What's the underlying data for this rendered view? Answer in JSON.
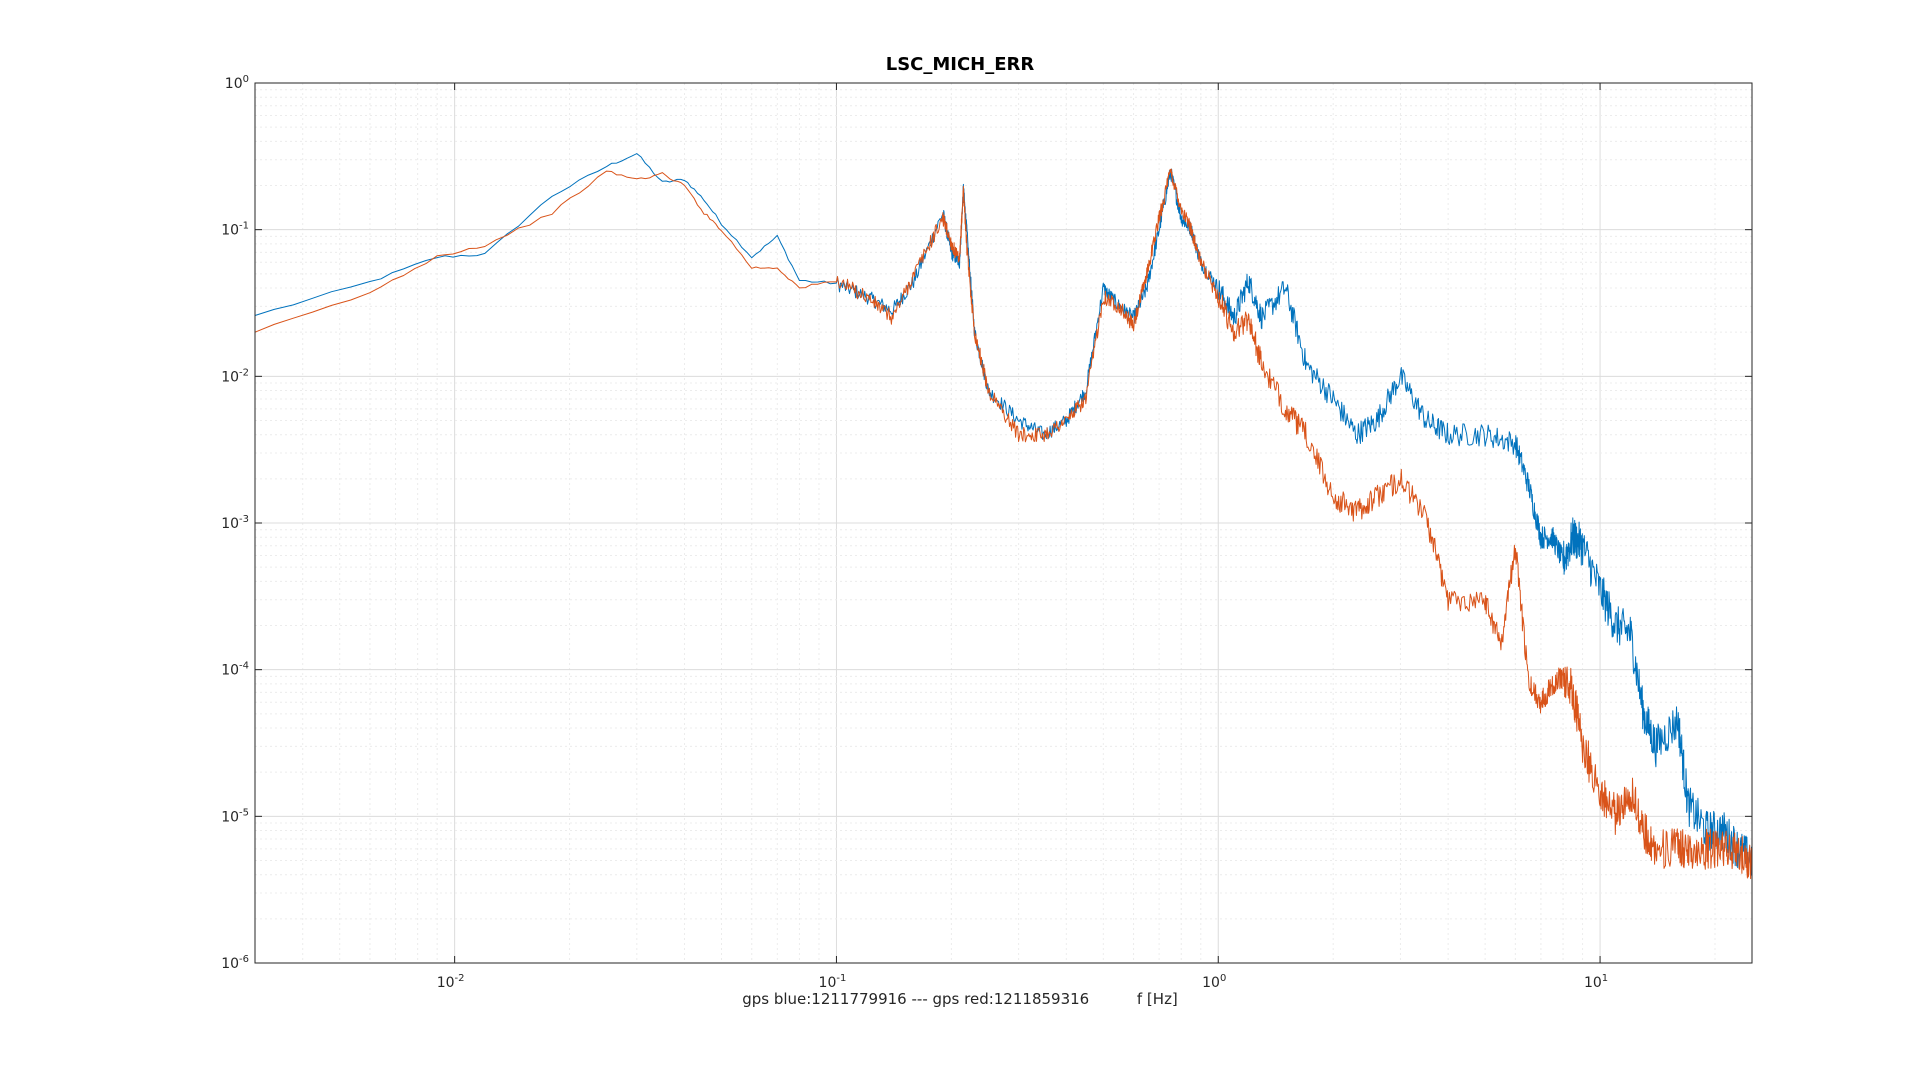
{
  "chart_data": {
    "type": "line",
    "title": "LSC_MICH_ERR",
    "xlabel": "gps blue:1211779916 --- gps red:1211859316          f [Hz]",
    "ylabel": "",
    "x_scale": "log",
    "y_scale": "log",
    "xlim": [
      0.003,
      25
    ],
    "ylim": [
      1e-06,
      1
    ],
    "grid": true,
    "minor_grid": true,
    "x_ticks": [
      {
        "base": "10",
        "exp": "-2",
        "value": 0.01
      },
      {
        "base": "10",
        "exp": "-1",
        "value": 0.1
      },
      {
        "base": "10",
        "exp": "0",
        "value": 1
      },
      {
        "base": "10",
        "exp": "1",
        "value": 10
      }
    ],
    "y_ticks": [
      {
        "base": "10",
        "exp": "0",
        "value": 1
      },
      {
        "base": "10",
        "exp": "-1",
        "value": 0.1
      },
      {
        "base": "10",
        "exp": "-2",
        "value": 0.01
      },
      {
        "base": "10",
        "exp": "-3",
        "value": 0.001
      },
      {
        "base": "10",
        "exp": "-4",
        "value": 0.0001
      },
      {
        "base": "10",
        "exp": "-5",
        "value": 1e-05
      },
      {
        "base": "10",
        "exp": "-6",
        "value": 1e-06
      }
    ],
    "series": [
      {
        "color": "#0072BD",
        "x": [
          0.003,
          0.006,
          0.009,
          0.012,
          0.018,
          0.025,
          0.03,
          0.035,
          0.04,
          0.045,
          0.05,
          0.06,
          0.07,
          0.08,
          0.1,
          0.12,
          0.14,
          0.16,
          0.19,
          0.2,
          0.21,
          0.215,
          0.22,
          0.23,
          0.25,
          0.3,
          0.35,
          0.4,
          0.45,
          0.5,
          0.55,
          0.6,
          0.65,
          0.7,
          0.75,
          0.8,
          0.85,
          0.9,
          1.0,
          1.1,
          1.2,
          1.3,
          1.5,
          1.7,
          2.0,
          2.3,
          2.6,
          3.0,
          3.5,
          4.0,
          5.0,
          6.0,
          6.5,
          7.0,
          7.5,
          8.0,
          8.5,
          9.0,
          10.0,
          11.0,
          12.0,
          13.0,
          14.0,
          16.0,
          17.0,
          19.0,
          21.0,
          23.0,
          25.0
        ],
        "y": [
          0.026,
          0.044,
          0.065,
          0.068,
          0.17,
          0.27,
          0.33,
          0.21,
          0.22,
          0.16,
          0.11,
          0.065,
          0.09,
          0.045,
          0.043,
          0.035,
          0.028,
          0.045,
          0.13,
          0.07,
          0.06,
          0.19,
          0.09,
          0.02,
          0.008,
          0.005,
          0.004,
          0.005,
          0.008,
          0.04,
          0.03,
          0.025,
          0.04,
          0.1,
          0.25,
          0.12,
          0.1,
          0.06,
          0.04,
          0.025,
          0.045,
          0.025,
          0.04,
          0.012,
          0.007,
          0.004,
          0.005,
          0.01,
          0.005,
          0.004,
          0.004,
          0.0035,
          0.0018,
          0.0008,
          0.0008,
          0.00055,
          0.0008,
          0.0007,
          0.00035,
          0.0002,
          0.00018,
          5e-05,
          3e-05,
          4.5e-05,
          1.2e-05,
          8e-06,
          8e-06,
          6e-06,
          5e-06
        ]
      },
      {
        "color": "#D95319",
        "x": [
          0.003,
          0.006,
          0.009,
          0.012,
          0.018,
          0.025,
          0.03,
          0.035,
          0.04,
          0.045,
          0.05,
          0.06,
          0.07,
          0.08,
          0.1,
          0.12,
          0.14,
          0.16,
          0.19,
          0.2,
          0.21,
          0.215,
          0.22,
          0.23,
          0.25,
          0.3,
          0.35,
          0.4,
          0.45,
          0.5,
          0.55,
          0.6,
          0.65,
          0.7,
          0.75,
          0.8,
          0.85,
          0.9,
          1.0,
          1.1,
          1.2,
          1.3,
          1.5,
          1.7,
          2.0,
          2.3,
          2.6,
          3.0,
          3.5,
          4.0,
          5.0,
          5.5,
          6.0,
          6.5,
          7.0,
          7.5,
          8.0,
          8.5,
          9.0,
          10.0,
          11.0,
          12.0,
          13.0,
          14.0,
          16.0,
          17.0,
          19.0,
          21.0,
          23.0,
          25.0
        ],
        "y": [
          0.02,
          0.037,
          0.066,
          0.078,
          0.13,
          0.25,
          0.22,
          0.24,
          0.2,
          0.13,
          0.1,
          0.055,
          0.055,
          0.04,
          0.045,
          0.035,
          0.025,
          0.05,
          0.12,
          0.08,
          0.06,
          0.19,
          0.07,
          0.02,
          0.008,
          0.004,
          0.004,
          0.005,
          0.007,
          0.035,
          0.03,
          0.022,
          0.05,
          0.12,
          0.25,
          0.14,
          0.1,
          0.06,
          0.035,
          0.02,
          0.025,
          0.012,
          0.006,
          0.004,
          0.0015,
          0.0012,
          0.0015,
          0.002,
          0.0011,
          0.0003,
          0.0003,
          0.00015,
          0.0007,
          8e-05,
          6e-05,
          8e-05,
          9e-05,
          7e-05,
          3e-05,
          1.5e-05,
          1e-05,
          1.5e-05,
          8e-06,
          6e-06,
          6e-06,
          6e-06,
          6e-06,
          6e-06,
          5.5e-06,
          5e-06
        ]
      }
    ]
  }
}
